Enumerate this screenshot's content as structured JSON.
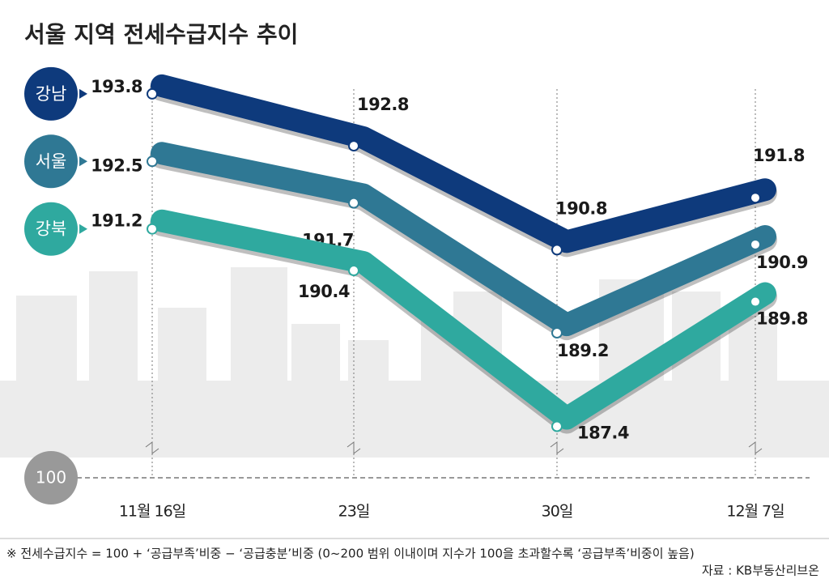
{
  "chart_data": {
    "type": "line",
    "title": "서울 지역 전세수급지수 추이",
    "categories": [
      "11월 16일",
      "23일",
      "30일",
      "12월 7일"
    ],
    "series": [
      {
        "name": "강남",
        "color": "#0e3a7c",
        "values": [
          193.8,
          192.8,
          190.8,
          191.8
        ]
      },
      {
        "name": "서울",
        "color": "#2f7894",
        "values": [
          192.5,
          191.7,
          189.2,
          190.9
        ]
      },
      {
        "name": "강북",
        "color": "#2fa99f",
        "values": [
          191.2,
          190.4,
          187.4,
          189.8
        ]
      }
    ],
    "ylim": [
      186.8,
      194.5
    ],
    "baseline": 100,
    "baseline_color": "#999999",
    "footnote": "※ 전세수급지수 = 100 + ‘공급부족’비중 − ‘공급충분’비중 (0~200 범위 이내이며 지수가 100을 초과할수록 ‘공급부족’비중이 높음)",
    "source": "자료 : KB부동산리브온"
  }
}
